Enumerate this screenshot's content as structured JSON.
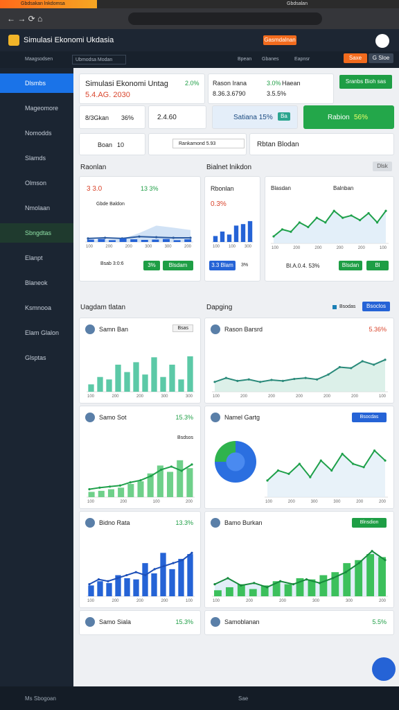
{
  "browser": {
    "tab": "Gbdsakan lnkdomsa",
    "tab2": "Gbdsalan"
  },
  "app": {
    "title": "Simulasi Ekonomi Ukdasia",
    "badge": "Gasmdalnan",
    "subnav": "Maagsodsen",
    "subnav2": "Ubmodsa Modan",
    "nav_right": [
      "Bpean",
      "Gbanes",
      "Eapnsr"
    ],
    "actions": [
      "Saxe",
      "G Sloe"
    ]
  },
  "sidebar": {
    "items": [
      "Dlsmbs",
      "Mageomore",
      "Nomodds",
      "Slamds",
      "Olmson",
      "Nmolaan",
      "Sbngdtas",
      "Elanpt",
      "Blaneok",
      "Ksmnooa",
      "Elam Glalon",
      "Glsptas"
    ]
  },
  "summary": {
    "main": {
      "title": "Simulasi Ekonomi Untag",
      "value": "5.4.AG. 2030",
      "change": "2.0%"
    },
    "stat": {
      "label": "Rason Irana",
      "value": "8.36.3.6790",
      "change": "3.0%",
      "change_label": "Haean",
      "sub": "3.5.5%"
    },
    "button": "Sranbs Bioh sas",
    "row2": [
      {
        "label": "8/3Gkan",
        "value": "36%"
      },
      {
        "label": "2.4.60"
      },
      {
        "label": "Satiana 15%",
        "badge": "Ba"
      },
      {
        "label": "Rabion",
        "value": "56%"
      }
    ],
    "row3": [
      {
        "label": "Boan",
        "value": "10"
      },
      {
        "label": "Rankamond 5.93"
      },
      {
        "label": "Rbtan Blodan"
      }
    ]
  },
  "section1": {
    "title": "Raonlan",
    "title2": "Bialnet lnikdon",
    "button": "Dlsk",
    "cards": [
      {
        "title": "3 3.0",
        "change": "13 3%",
        "legend": "Gbde Baldon",
        "footer": "Bsab 3:0:6",
        "buttons": [
          "3%",
          "Blsdam"
        ],
        "chart": {
          "type": "combo",
          "ylim": [
            0,
            100
          ],
          "x_labels": [
            "100",
            "200",
            "200",
            "300",
            "300",
            "200"
          ],
          "series": [
            {
              "type": "area",
              "color": "#c6dbf2",
              "values": [
                5,
                8,
                10,
                30,
                55,
                48,
                40
              ]
            },
            {
              "type": "line",
              "color": "#2a5aa0",
              "values": [
                12,
                14,
                12,
                18,
                16,
                14,
                14
              ]
            },
            {
              "type": "bar",
              "color": "#2563d6",
              "values": [
                8,
                10,
                6,
                12,
                9,
                7,
                8,
                10,
                6,
                9
              ]
            }
          ]
        }
      },
      {
        "title": "Rbonlan",
        "change": "0.3%",
        "buttons": [
          "3.3 Blam",
          "3%"
        ],
        "chart": {
          "type": "combo",
          "ylim": [
            0,
            100
          ],
          "x_labels": [
            "100",
            "100",
            "300"
          ],
          "series": [
            {
              "type": "bar",
              "color": "#2563d6",
              "values": [
                20,
                35,
                25,
                55,
                60,
                70
              ]
            }
          ]
        }
      },
      {
        "title": "Blasdan",
        "title2": "Balnban",
        "footer": "Bl.A.0.4. 53%",
        "buttons": [
          "Blsdan",
          "Bl"
        ],
        "chart": {
          "type": "combo",
          "ylim": [
            0,
            100
          ],
          "x_labels": [
            "100",
            "200",
            "200",
            "200",
            "200",
            "100"
          ],
          "series": [
            {
              "type": "area",
              "color": "#dcebf7",
              "values": [
                15,
                30,
                25,
                45,
                35,
                55,
                45,
                70,
                55,
                60,
                50,
                65,
                45,
                70
              ]
            },
            {
              "type": "line",
              "color": "#1ea04a",
              "values": [
                15,
                30,
                25,
                45,
                35,
                55,
                45,
                70,
                55,
                60,
                50,
                65,
                45,
                70
              ]
            }
          ]
        }
      }
    ]
  },
  "section2": {
    "title": "Uagdam tlatan",
    "title2": "Dapging",
    "legend": "Bsodas",
    "button": "Bsoclos",
    "cards": [
      {
        "title": "Samn Ban",
        "tag": "Bsas",
        "chart": {
          "type": "combo",
          "ylim": [
            0,
            100
          ],
          "x_labels": [
            "100",
            "200",
            "200",
            "300",
            "300"
          ],
          "series": [
            {
              "type": "bar",
              "color": "#5cc9a7",
              "values": [
                15,
                30,
                25,
                55,
                40,
                60,
                35,
                70,
                30,
                55,
                25,
                72
              ]
            }
          ]
        }
      },
      {
        "title": "Rason Barsrd",
        "change": "5.36%",
        "chart": {
          "type": "combo",
          "ylim": [
            0,
            100
          ],
          "x_labels": [
            "100",
            "200",
            "200",
            "200",
            "200",
            "200",
            "100"
          ],
          "series": [
            {
              "type": "area",
              "color": "#d3ece4",
              "values": [
                20,
                28,
                22,
                25,
                20,
                24,
                22,
                26,
                28,
                25,
                35,
                50,
                48,
                62,
                55,
                65
              ]
            },
            {
              "type": "line",
              "color": "#2a8a7a",
              "values": [
                20,
                28,
                22,
                25,
                20,
                24,
                22,
                26,
                28,
                25,
                35,
                50,
                48,
                62,
                55,
                65
              ]
            }
          ]
        }
      },
      {
        "title": "Samo Sot",
        "change": "15.3%",
        "legend": "Bsdsos",
        "chart": {
          "type": "combo",
          "ylim": [
            0,
            100
          ],
          "x_labels": [
            "100",
            "200",
            "100",
            "200"
          ],
          "series": [
            {
              "type": "bar",
              "color": "#6fd08a",
              "values": [
                10,
                12,
                15,
                18,
                25,
                30,
                45,
                60,
                48,
                70,
                55
              ]
            },
            {
              "type": "line",
              "color": "#1ea04a",
              "values": [
                15,
                18,
                20,
                22,
                28,
                32,
                40,
                52,
                58,
                50,
                62
              ]
            }
          ]
        }
      },
      {
        "title": "Namel Gartg",
        "button": "Bsocdas",
        "pie": {
          "type": "pie",
          "values": [
            75,
            25
          ],
          "colors": [
            "#2b6fe0",
            "#2fb34d"
          ]
        },
        "chart": {
          "type": "combo",
          "ylim": [
            0,
            100
          ],
          "x_labels": [
            "100",
            "200",
            "300",
            "300",
            "200",
            "200"
          ],
          "series": [
            {
              "type": "area",
              "color": "#e2eff8",
              "values": [
                25,
                40,
                35,
                50,
                30,
                55,
                40,
                65,
                50,
                45,
                70,
                55
              ]
            },
            {
              "type": "line",
              "color": "#1ea04a",
              "values": [
                25,
                40,
                35,
                50,
                30,
                55,
                40,
                65,
                50,
                45,
                70,
                55
              ]
            }
          ]
        }
      },
      {
        "title": "Bidno Rata",
        "change": "13.3%",
        "chart": {
          "type": "combo",
          "ylim": [
            0,
            100
          ],
          "x_labels": [
            "100",
            "200",
            "200",
            "200",
            "100"
          ],
          "series": [
            {
              "type": "bar",
              "color": "#2563d6",
              "values": [
                18,
                25,
                22,
                35,
                30,
                28,
                55,
                38,
                72,
                45,
                62,
                70
              ]
            },
            {
              "type": "line",
              "color": "#1d4fb8",
              "values": [
                20,
                28,
                25,
                30,
                35,
                40,
                35,
                45,
                50,
                55,
                60,
                72
              ]
            }
          ]
        }
      },
      {
        "title": "Bamo Burkan",
        "button": "Blnsdion",
        "chart": {
          "type": "combo",
          "ylim": [
            0,
            100
          ],
          "x_labels": [
            "100",
            "200",
            "200",
            "300",
            "300",
            "200"
          ],
          "series": [
            {
              "type": "area",
              "color": "#dbeaf6",
              "values": [
                20,
                30,
                18,
                22,
                15,
                25,
                20,
                28,
                22,
                30,
                40,
                55,
                75,
                60
              ]
            },
            {
              "type": "bar",
              "color": "#3cc05c",
              "values": [
                10,
                15,
                20,
                12,
                18,
                25,
                20,
                30,
                28,
                35,
                40,
                55,
                60,
                70,
                65
              ]
            },
            {
              "type": "line",
              "color": "#168a3c",
              "values": [
                20,
                30,
                18,
                22,
                15,
                25,
                20,
                28,
                22,
                30,
                40,
                55,
                75,
                60
              ]
            }
          ]
        }
      },
      {
        "title": "Samo Siala",
        "change": "15.3%"
      },
      {
        "title": "Samoblanan",
        "change": "5.5%"
      }
    ]
  },
  "footer": {
    "text": "Ms Sbogoan",
    "right": "Sae"
  }
}
